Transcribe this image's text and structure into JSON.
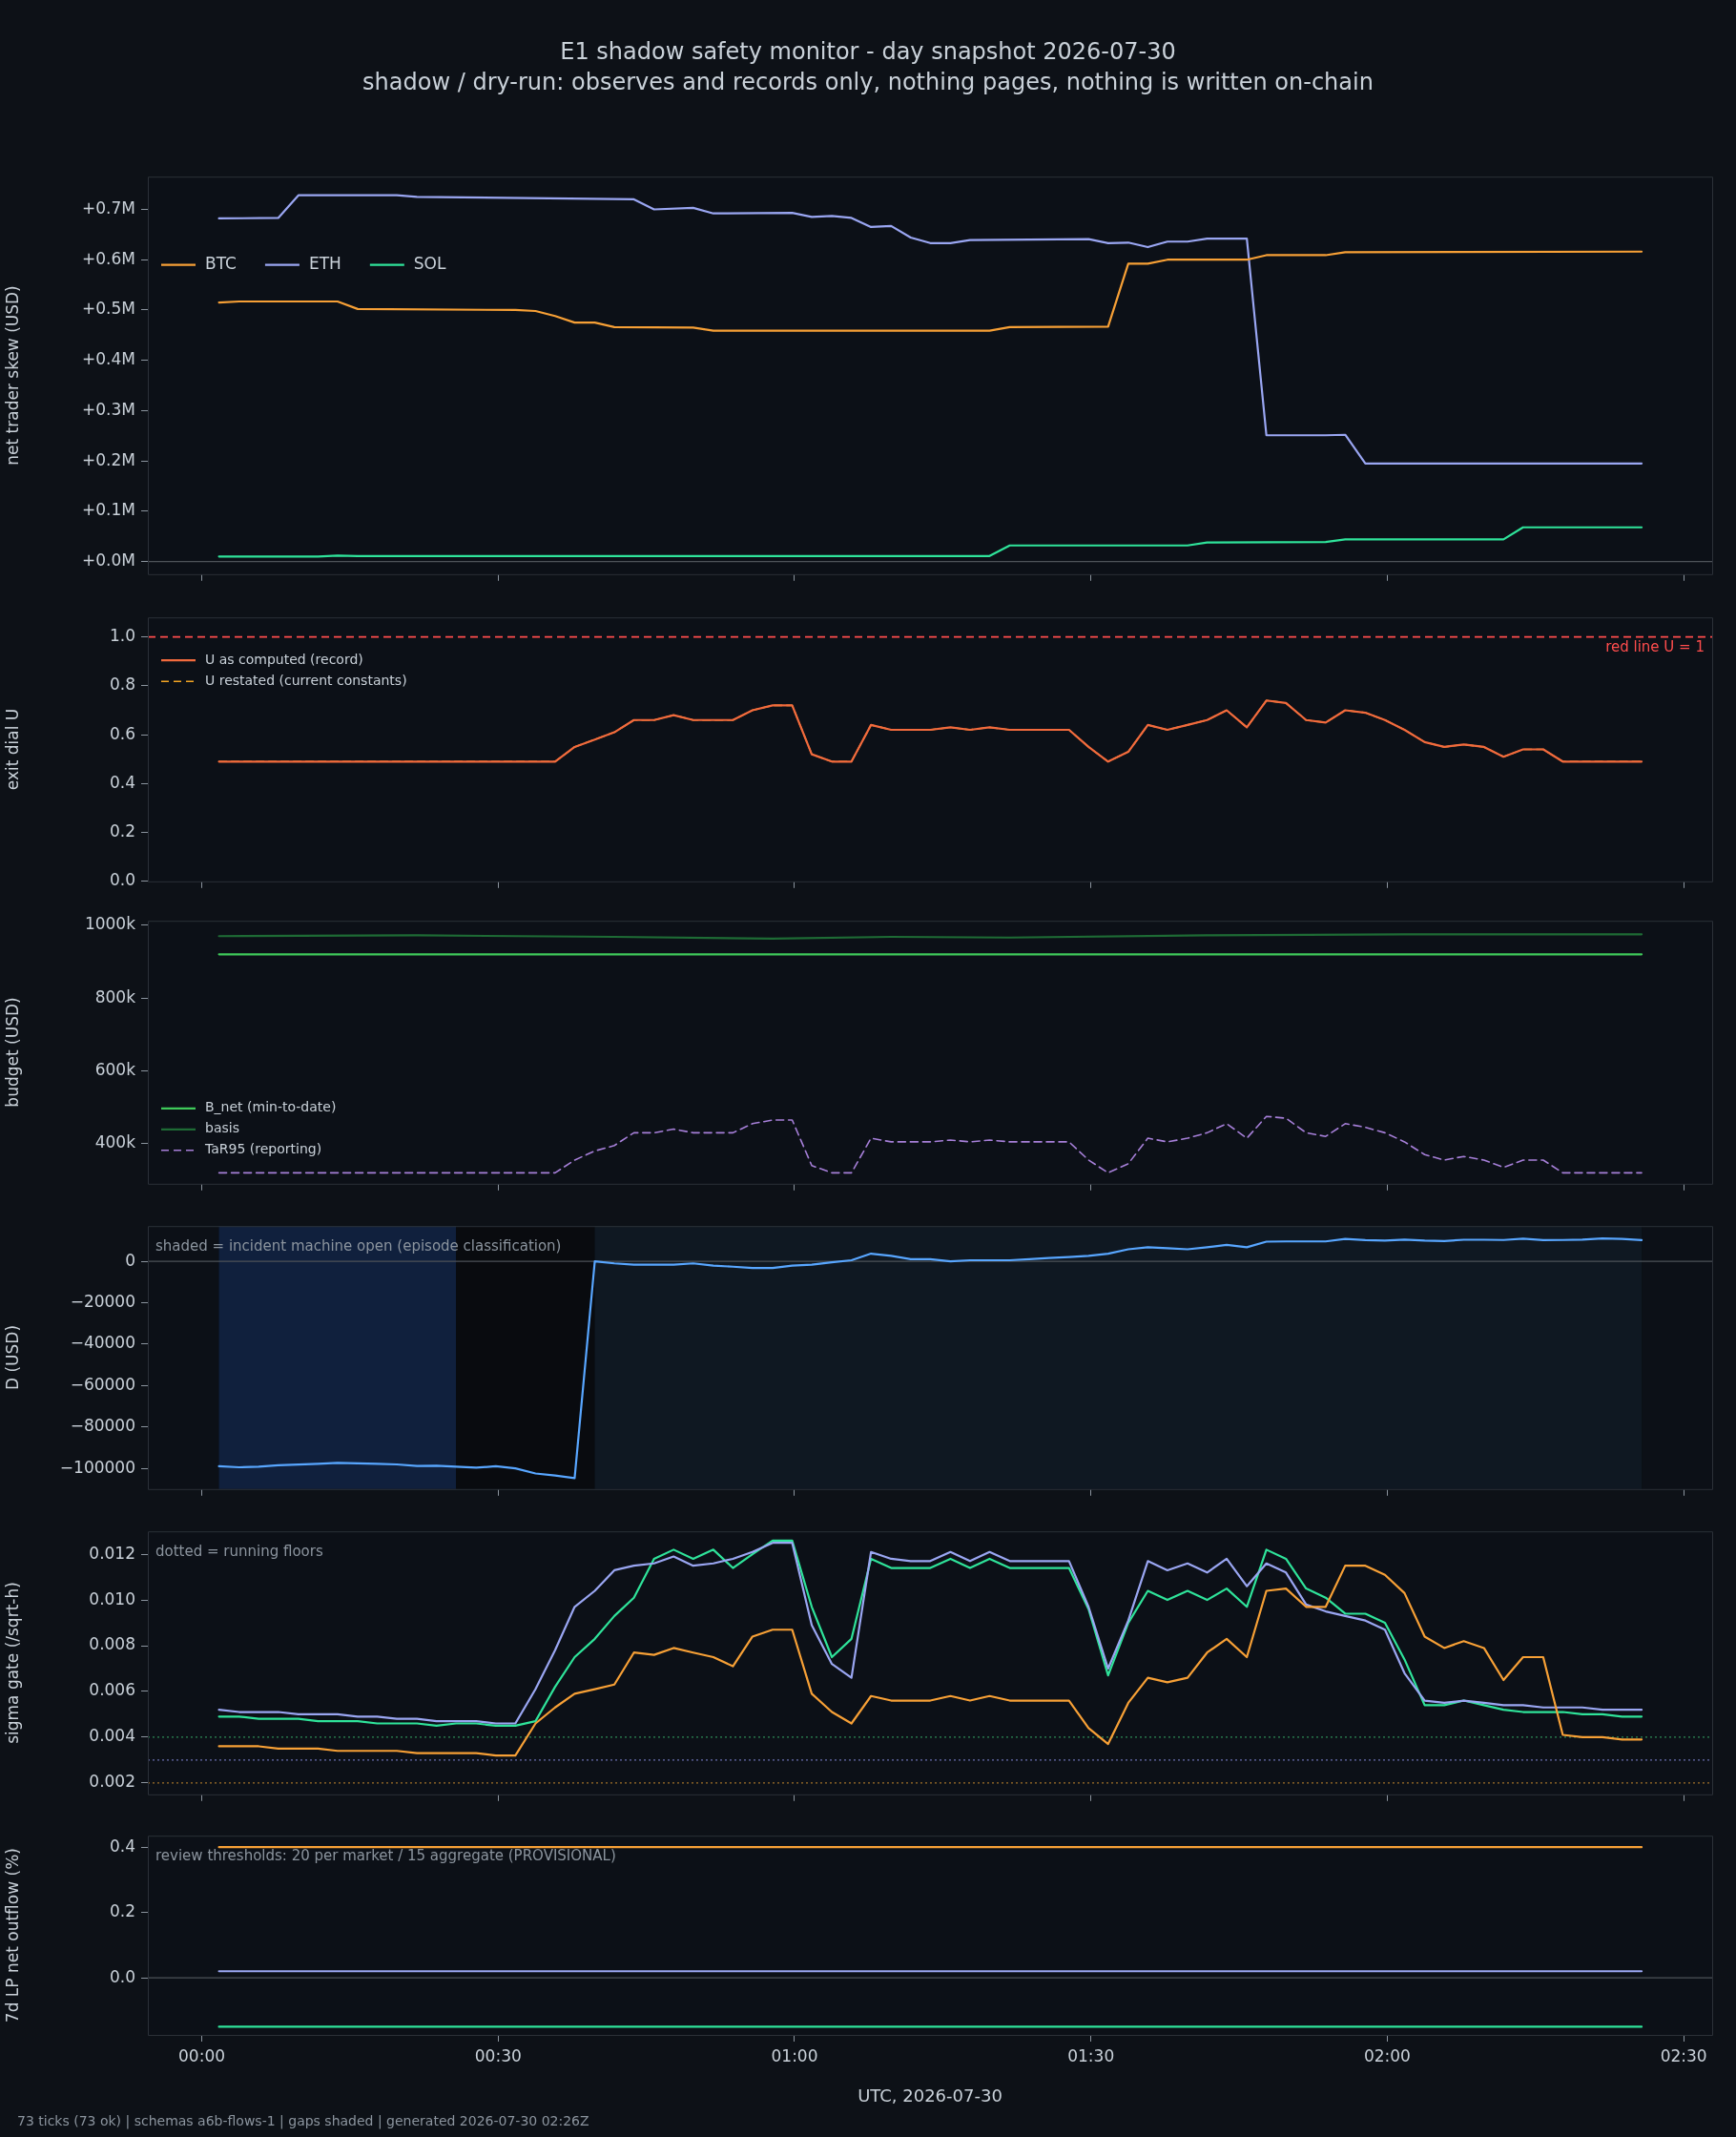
{
  "chart_data": [
    {
      "type": "line",
      "title": "E1 shadow safety monitor - day snapshot 2026-07-30",
      "subtitle": "shadow / dry-run: observes and records only, nothing pages, nothing is written on-chain",
      "ylabel": "net trader skew (USD)",
      "legend": "top left",
      "tick_labels": "y",
      "xlim": [
        -0.091,
        2.548
      ],
      "xticks": [
        0,
        0.5,
        1,
        1.5,
        2,
        2.5
      ],
      "ylim": [
        -0.025,
        0.765
      ],
      "yticks": [
        {
          "value": 0,
          "label": "+0.0M"
        },
        {
          "value": 0.1,
          "label": "+0.1M"
        },
        {
          "value": 0.2,
          "label": "+0.2M"
        },
        {
          "value": 0.3,
          "label": "+0.3M"
        },
        {
          "value": 0.4,
          "label": "+0.4M"
        },
        {
          "value": 0.5,
          "label": "+0.5M"
        },
        {
          "value": 0.6,
          "label": "+0.6M"
        },
        {
          "value": 0.7,
          "label": "+0.7M"
        }
      ],
      "ref_lines": [
        {
          "axis": "y",
          "value": 0,
          "color": "#4d5258"
        }
      ],
      "series": [
        {
          "name": "BTC",
          "color": "#f7a036",
          "x": [
            0.029,
            0.063,
            0.229,
            0.263,
            0.529,
            0.563,
            0.596,
            0.629,
            0.663,
            0.696,
            0.829,
            0.863,
            1.329,
            1.363,
            1.529,
            1.563,
            1.596,
            1.629,
            1.763,
            1.796,
            1.896,
            1.929,
            2.429
          ],
          "values": [
            0.515,
            0.517,
            0.517,
            0.502,
            0.5,
            0.498,
            0.488,
            0.475,
            0.475,
            0.466,
            0.465,
            0.459,
            0.459,
            0.466,
            0.467,
            0.592,
            0.592,
            0.6,
            0.6,
            0.609,
            0.609,
            0.615,
            0.616
          ]
        },
        {
          "name": "ETH",
          "color": "#9aa6f2",
          "x": [
            0.029,
            0.129,
            0.163,
            0.329,
            0.363,
            0.729,
            0.763,
            0.829,
            0.863,
            0.996,
            1.029,
            1.063,
            1.096,
            1.129,
            1.163,
            1.196,
            1.229,
            1.263,
            1.296,
            1.496,
            1.529,
            1.563,
            1.596,
            1.629,
            1.663,
            1.696,
            1.763,
            1.796,
            1.896,
            1.929,
            1.963,
            2.429
          ],
          "values": [
            0.682,
            0.683,
            0.728,
            0.728,
            0.725,
            0.72,
            0.7,
            0.703,
            0.692,
            0.693,
            0.685,
            0.687,
            0.683,
            0.665,
            0.667,
            0.644,
            0.633,
            0.633,
            0.639,
            0.641,
            0.633,
            0.634,
            0.625,
            0.636,
            0.636,
            0.642,
            0.642,
            0.251,
            0.251,
            0.252,
            0.195,
            0.195
          ]
        },
        {
          "name": "SOL",
          "color": "#2fe39a",
          "x": [
            0.029,
            0.196,
            0.229,
            0.263,
            1.329,
            1.363,
            1.663,
            1.696,
            1.896,
            1.929,
            2.196,
            2.229,
            2.429
          ],
          "values": [
            0.01,
            0.01,
            0.012,
            0.011,
            0.011,
            0.032,
            0.032,
            0.038,
            0.039,
            0.044,
            0.044,
            0.068,
            0.068
          ]
        }
      ]
    },
    {
      "type": "line",
      "ylabel": "exit dial U",
      "legend": "top left",
      "tick_labels": "y",
      "xlim": [
        -0.091,
        2.548
      ],
      "xticks": [
        0,
        0.5,
        1,
        1.5,
        2,
        2.5
      ],
      "ylim": [
        0,
        1.08
      ],
      "yticks": [
        {
          "value": 0,
          "label": "0.0"
        },
        {
          "value": 0.2,
          "label": "0.2"
        },
        {
          "value": 0.4,
          "label": "0.4"
        },
        {
          "value": 0.6,
          "label": "0.6"
        },
        {
          "value": 0.8,
          "label": "0.8"
        },
        {
          "value": 1,
          "label": "1.0"
        }
      ],
      "ref_lines": [
        {
          "axis": "y",
          "value": 1,
          "label": "red line U = 1",
          "color": "#ff4d4d",
          "line_style": "dashed"
        }
      ],
      "x": [
        0.029,
        0.063,
        0.096,
        0.129,
        0.163,
        0.196,
        0.229,
        0.263,
        0.296,
        0.329,
        0.363,
        0.396,
        0.429,
        0.463,
        0.496,
        0.529,
        0.563,
        0.596,
        0.629,
        0.663,
        0.696,
        0.729,
        0.763,
        0.796,
        0.829,
        0.863,
        0.896,
        0.929,
        0.963,
        0.996,
        1.029,
        1.063,
        1.096,
        1.129,
        1.163,
        1.196,
        1.229,
        1.263,
        1.296,
        1.329,
        1.363,
        1.396,
        1.429,
        1.463,
        1.496,
        1.529,
        1.563,
        1.596,
        1.629,
        1.663,
        1.696,
        1.729,
        1.763,
        1.796,
        1.829,
        1.863,
        1.896,
        1.929,
        1.963,
        1.996,
        2.029,
        2.063,
        2.096,
        2.129,
        2.163,
        2.196,
        2.229,
        2.263,
        2.296,
        2.329,
        2.363,
        2.396,
        2.429
      ],
      "series": [
        {
          "name": "U as computed (record)",
          "color": "#f26a3d",
          "values": [
            0.49,
            0.49,
            0.49,
            0.49,
            0.49,
            0.49,
            0.49,
            0.49,
            0.49,
            0.49,
            0.49,
            0.49,
            0.49,
            0.49,
            0.49,
            0.49,
            0.49,
            0.49,
            0.55,
            0.58,
            0.61,
            0.66,
            0.66,
            0.68,
            0.66,
            0.66,
            0.66,
            0.7,
            0.72,
            0.72,
            0.52,
            0.49,
            0.49,
            0.64,
            0.62,
            0.62,
            0.62,
            0.63,
            0.62,
            0.63,
            0.62,
            0.62,
            0.62,
            0.62,
            0.55,
            0.49,
            0.53,
            0.64,
            0.62,
            0.64,
            0.66,
            0.7,
            0.63,
            0.74,
            0.73,
            0.66,
            0.65,
            0.7,
            0.69,
            0.66,
            0.62,
            0.57,
            0.55,
            0.56,
            0.55,
            0.51,
            0.54,
            0.54,
            0.49,
            0.49,
            0.49,
            0.49,
            0.49
          ]
        },
        {
          "name": "U restated (current constants)",
          "color": "#f5a623",
          "line_style": "dashed",
          "values": [
            0.49,
            0.49,
            0.49,
            0.49,
            0.49,
            0.49,
            0.49,
            0.49,
            0.49,
            0.49,
            0.49,
            0.49,
            0.49,
            0.49,
            0.49,
            0.49,
            0.49,
            0.49,
            0.55,
            0.58,
            0.61,
            0.66,
            0.66,
            0.68,
            0.66,
            0.66,
            0.66,
            0.7,
            0.72,
            0.72,
            0.52,
            0.49,
            0.49,
            0.64,
            0.62,
            0.62,
            0.62,
            0.63,
            0.62,
            0.63,
            0.62,
            0.62,
            0.62,
            0.62,
            0.55,
            0.49,
            0.53,
            0.64,
            0.62,
            0.64,
            0.66,
            0.7,
            0.63,
            0.74,
            0.73,
            0.66,
            0.65,
            0.7,
            0.69,
            0.66,
            0.62,
            0.57,
            0.55,
            0.56,
            0.55,
            0.51,
            0.54,
            0.54,
            0.49,
            0.49,
            0.49,
            0.49,
            0.49
          ]
        }
      ]
    },
    {
      "type": "line",
      "ylabel": "budget (USD)",
      "legend": "bottom left",
      "tick_labels": "y",
      "xlim": [
        -0.091,
        2.548
      ],
      "xticks": [
        0,
        0.5,
        1,
        1.5,
        2,
        2.5
      ],
      "ylim": [
        290000,
        1012000
      ],
      "yticks": [
        {
          "value": 400000,
          "label": "400k"
        },
        {
          "value": 600000,
          "label": "600k"
        },
        {
          "value": 800000,
          "label": "800k"
        },
        {
          "value": 1000000,
          "label": "1000k"
        }
      ],
      "x": [
        0.029,
        0.063,
        0.096,
        0.129,
        0.163,
        0.196,
        0.229,
        0.263,
        0.296,
        0.329,
        0.363,
        0.396,
        0.429,
        0.463,
        0.496,
        0.529,
        0.563,
        0.596,
        0.629,
        0.663,
        0.696,
        0.729,
        0.763,
        0.796,
        0.829,
        0.863,
        0.896,
        0.929,
        0.963,
        0.996,
        1.029,
        1.063,
        1.096,
        1.129,
        1.163,
        1.196,
        1.229,
        1.263,
        1.296,
        1.329,
        1.363,
        1.396,
        1.429,
        1.463,
        1.496,
        1.529,
        1.563,
        1.596,
        1.629,
        1.663,
        1.696,
        1.729,
        1.763,
        1.796,
        1.829,
        1.863,
        1.896,
        1.929,
        1.963,
        1.996,
        2.029,
        2.063,
        2.096,
        2.129,
        2.163,
        2.196,
        2.229,
        2.263,
        2.296,
        2.329,
        2.363,
        2.396,
        2.429
      ],
      "series": [
        {
          "name": "B_net (min-to-date)",
          "color": "#3fc95a",
          "x": [
            0.029,
            2.429
          ],
          "values": [
            920000,
            920000
          ]
        },
        {
          "name": "basis",
          "color": "#1e6b35",
          "x": [
            0.029,
            0.363,
            0.696,
            0.963,
            1.163,
            1.363,
            1.696,
            2.029,
            2.429
          ],
          "values": [
            970000,
            972000,
            968000,
            963000,
            968000,
            966000,
            972000,
            975000,
            975000
          ]
        },
        {
          "name": "TaR95 (reporting)",
          "color": "#a67fd8",
          "line_style": "dashed",
          "values": [
            320000,
            320000,
            320000,
            320000,
            320000,
            320000,
            320000,
            320000,
            320000,
            320000,
            320000,
            320000,
            320000,
            320000,
            320000,
            320000,
            320000,
            320000,
            355000,
            380000,
            395000,
            430000,
            430000,
            440000,
            430000,
            430000,
            430000,
            455000,
            465000,
            465000,
            340000,
            320000,
            320000,
            415000,
            405000,
            405000,
            405000,
            410000,
            405000,
            410000,
            405000,
            405000,
            405000,
            405000,
            355000,
            320000,
            345000,
            415000,
            405000,
            415000,
            430000,
            455000,
            415000,
            475000,
            470000,
            430000,
            420000,
            455000,
            445000,
            430000,
            405000,
            370000,
            355000,
            365000,
            355000,
            335000,
            355000,
            355000,
            320000,
            320000,
            320000,
            320000,
            320000
          ]
        }
      ]
    },
    {
      "type": "line",
      "ylabel": "D (USD)",
      "tick_labels": "y",
      "annotations": [
        "shaded = incident machine open (episode classification)"
      ],
      "xlim": [
        -0.091,
        2.548
      ],
      "xticks": [
        0,
        0.5,
        1,
        1.5,
        2,
        2.5
      ],
      "ylim": [
        -110000,
        17000
      ],
      "yticks": [
        {
          "value": -100000,
          "label": "−100000"
        },
        {
          "value": -80000,
          "label": "−80000"
        },
        {
          "value": -60000,
          "label": "−60000"
        },
        {
          "value": -40000,
          "label": "−40000"
        },
        {
          "value": -20000,
          "label": "−20000"
        },
        0
      ],
      "bands": [
        {
          "axis": "x",
          "from": 0.029,
          "to": 0.429,
          "color": "#10203d"
        },
        {
          "axis": "x",
          "from": 0.429,
          "to": 0.663,
          "color": "#090b0f"
        },
        {
          "axis": "x",
          "from": 0.663,
          "to": 2.429,
          "color": "#0f1822"
        }
      ],
      "ref_lines": [
        {
          "axis": "y",
          "value": 0,
          "color": "#4d5258"
        }
      ],
      "x": [
        0.029,
        0.063,
        0.096,
        0.129,
        0.163,
        0.196,
        0.229,
        0.263,
        0.296,
        0.329,
        0.363,
        0.396,
        0.429,
        0.463,
        0.496,
        0.529,
        0.563,
        0.596,
        0.629,
        0.663,
        0.696,
        0.729,
        0.763,
        0.796,
        0.829,
        0.863,
        0.896,
        0.929,
        0.963,
        0.996,
        1.029,
        1.063,
        1.096,
        1.129,
        1.163,
        1.196,
        1.229,
        1.263,
        1.296,
        1.329,
        1.363,
        1.396,
        1.429,
        1.463,
        1.496,
        1.529,
        1.563,
        1.596,
        1.629,
        1.663,
        1.696,
        1.729,
        1.763,
        1.796,
        1.829,
        1.863,
        1.896,
        1.929,
        1.963,
        1.996,
        2.029,
        2.063,
        2.096,
        2.129,
        2.163,
        2.196,
        2.229,
        2.263,
        2.296,
        2.329,
        2.363,
        2.396,
        2.429
      ],
      "series": [
        {
          "color": "#58a6ff",
          "values": [
            -99000,
            -99500,
            -99200,
            -98500,
            -98200,
            -97800,
            -97400,
            -97600,
            -97800,
            -98100,
            -98900,
            -98700,
            -99200,
            -99700,
            -99000,
            -100000,
            -102500,
            -103500,
            -104700,
            0,
            -1000,
            -1600,
            -1600,
            -1600,
            -1000,
            -2100,
            -2600,
            -3200,
            -3200,
            -2100,
            -1600,
            -500,
            500,
            3700,
            2600,
            1000,
            1000,
            0,
            500,
            500,
            500,
            1000,
            1600,
            2100,
            2600,
            3700,
            5800,
            6800,
            6300,
            5800,
            6800,
            7900,
            6800,
            9500,
            9600,
            9600,
            9600,
            10800,
            10200,
            10000,
            10500,
            10000,
            9800,
            10400,
            10400,
            10300,
            10900,
            10200,
            10300,
            10500,
            11000,
            10800,
            10200
          ]
        }
      ]
    },
    {
      "type": "line",
      "ylabel": "sigma gate (/sqrt-h)",
      "tick_labels": "y",
      "annotations": [
        "dotted = running floors"
      ],
      "xlim": [
        -0.091,
        2.548
      ],
      "xticks": [
        0,
        0.5,
        1,
        1.5,
        2,
        2.5
      ],
      "ylim": [
        0.0015,
        0.013
      ],
      "yticks": [
        {
          "value": 0.002,
          "label": "0.002"
        },
        {
          "value": 0.004,
          "label": "0.004"
        },
        {
          "value": 0.006,
          "label": "0.006"
        },
        {
          "value": 0.008,
          "label": "0.008"
        },
        {
          "value": 0.01,
          "label": "0.010"
        },
        {
          "value": 0.012,
          "label": "0.012"
        }
      ],
      "ref_lines": [
        {
          "axis": "y",
          "value": 0.004,
          "color": "#2e8b57",
          "line_style": "dotted"
        },
        {
          "axis": "y",
          "value": 0.003,
          "color": "#6a6fb0",
          "line_style": "dotted"
        },
        {
          "axis": "y",
          "value": 0.002,
          "color": "#a0702a",
          "line_style": "dotted"
        }
      ],
      "x": [
        0.029,
        0.063,
        0.096,
        0.129,
        0.163,
        0.196,
        0.229,
        0.263,
        0.296,
        0.329,
        0.363,
        0.396,
        0.429,
        0.463,
        0.496,
        0.529,
        0.563,
        0.596,
        0.629,
        0.663,
        0.696,
        0.729,
        0.763,
        0.796,
        0.829,
        0.863,
        0.896,
        0.929,
        0.963,
        0.996,
        1.029,
        1.063,
        1.096,
        1.129,
        1.163,
        1.196,
        1.229,
        1.263,
        1.296,
        1.329,
        1.363,
        1.396,
        1.429,
        1.463,
        1.496,
        1.529,
        1.563,
        1.596,
        1.629,
        1.663,
        1.696,
        1.729,
        1.763,
        1.796,
        1.829,
        1.863,
        1.896,
        1.929,
        1.963,
        1.996,
        2.029,
        2.063,
        2.096,
        2.129,
        2.163,
        2.196,
        2.229,
        2.263,
        2.296,
        2.329,
        2.363,
        2.396,
        2.429
      ],
      "series": [
        {
          "color": "#f7a036",
          "values": [
            0.0036,
            0.0036,
            0.0036,
            0.0035,
            0.0035,
            0.0035,
            0.0034,
            0.0034,
            0.0034,
            0.0034,
            0.0033,
            0.0033,
            0.0033,
            0.0033,
            0.0032,
            0.0032,
            0.0046,
            0.0053,
            0.0059,
            0.0061,
            0.0063,
            0.0077,
            0.0076,
            0.0079,
            0.0077,
            0.0075,
            0.0071,
            0.0084,
            0.0087,
            0.0087,
            0.0059,
            0.0051,
            0.0046,
            0.0058,
            0.0056,
            0.0056,
            0.0056,
            0.0058,
            0.0056,
            0.0058,
            0.0056,
            0.0056,
            0.0056,
            0.0056,
            0.0044,
            0.0037,
            0.0055,
            0.0066,
            0.0064,
            0.0066,
            0.0077,
            0.0083,
            0.0075,
            0.0104,
            0.0105,
            0.0097,
            0.0097,
            0.0115,
            0.0115,
            0.0111,
            0.0103,
            0.0084,
            0.0079,
            0.0082,
            0.0079,
            0.0065,
            0.0075,
            0.0075,
            0.0041,
            0.004,
            0.004,
            0.0039,
            0.0039
          ]
        },
        {
          "color": "#9aa6f2",
          "values": [
            0.0052,
            0.0051,
            0.0051,
            0.0051,
            0.005,
            0.005,
            0.005,
            0.0049,
            0.0049,
            0.0048,
            0.0048,
            0.0047,
            0.0047,
            0.0047,
            0.0046,
            0.0046,
            0.0061,
            0.0078,
            0.0097,
            0.0104,
            0.0113,
            0.0115,
            0.0116,
            0.0119,
            0.0115,
            0.0116,
            0.0118,
            0.0121,
            0.0125,
            0.0125,
            0.0089,
            0.0072,
            0.0066,
            0.0121,
            0.0118,
            0.0117,
            0.0117,
            0.0121,
            0.0117,
            0.0121,
            0.0117,
            0.0117,
            0.0117,
            0.0117,
            0.0097,
            0.007,
            0.0091,
            0.0117,
            0.0113,
            0.0116,
            0.0112,
            0.0118,
            0.0106,
            0.0116,
            0.0112,
            0.0098,
            0.0095,
            0.0093,
            0.0091,
            0.0087,
            0.0068,
            0.0056,
            0.0055,
            0.0056,
            0.0055,
            0.0054,
            0.0054,
            0.0053,
            0.0053,
            0.0053,
            0.0052,
            0.0052,
            0.0052
          ]
        },
        {
          "color": "#2fe39a",
          "values": [
            0.0049,
            0.0049,
            0.0048,
            0.0048,
            0.0048,
            0.0047,
            0.0047,
            0.0047,
            0.0046,
            0.0046,
            0.0046,
            0.0045,
            0.0046,
            0.0046,
            0.0045,
            0.0045,
            0.0047,
            0.0062,
            0.0075,
            0.0083,
            0.0093,
            0.0101,
            0.0118,
            0.0122,
            0.0118,
            0.0122,
            0.0114,
            0.012,
            0.0126,
            0.0126,
            0.0097,
            0.0075,
            0.0083,
            0.0118,
            0.0114,
            0.0114,
            0.0114,
            0.0118,
            0.0114,
            0.0118,
            0.0114,
            0.0114,
            0.0114,
            0.0114,
            0.0096,
            0.0067,
            0.009,
            0.0104,
            0.01,
            0.0104,
            0.01,
            0.0105,
            0.0097,
            0.0122,
            0.0118,
            0.0105,
            0.0101,
            0.0094,
            0.0094,
            0.009,
            0.0074,
            0.0054,
            0.0054,
            0.0056,
            0.0054,
            0.0052,
            0.0051,
            0.0051,
            0.0051,
            0.005,
            0.005,
            0.0049,
            0.0049
          ]
        }
      ]
    },
    {
      "type": "line",
      "ylabel": "7d LP net outflow (%)",
      "xlabel": "UTC, 2026-07-30",
      "annotations": [
        "review thresholds: 20 per market / 15 aggregate (PROVISIONAL)",
        "73 ticks (73 ok) | schemas a6b-flows-1 | gaps shaded | generated 2026-07-30 02:26Z"
      ],
      "xlim": [
        -0.091,
        2.548
      ],
      "xticks": [
        {
          "value": 0,
          "label": "00:00"
        },
        {
          "value": 0.5,
          "label": "00:30"
        },
        {
          "value": 1,
          "label": "01:00"
        },
        {
          "value": 1.5,
          "label": "01:30"
        },
        {
          "value": 2,
          "label": "02:00"
        },
        {
          "value": 2.5,
          "label": "02:30"
        }
      ],
      "ylim": [
        -0.175,
        0.435
      ],
      "yticks": [
        {
          "value": 0,
          "label": "0.0"
        },
        {
          "value": 0.2,
          "label": "0.2"
        },
        {
          "value": 0.4,
          "label": "0.4"
        }
      ],
      "ref_lines": [
        {
          "axis": "y",
          "value": 0,
          "color": "#4d5258"
        }
      ],
      "series": [
        {
          "color": "#f7a036",
          "x": [
            0.029,
            2.429
          ],
          "values": [
            0.4,
            0.4
          ]
        },
        {
          "color": "#9aa6f2",
          "x": [
            0.029,
            2.429
          ],
          "values": [
            0.02,
            0.02
          ]
        },
        {
          "color": "#2fe39a",
          "x": [
            0.029,
            2.429
          ],
          "values": [
            -0.15,
            -0.15
          ]
        }
      ]
    }
  ]
}
